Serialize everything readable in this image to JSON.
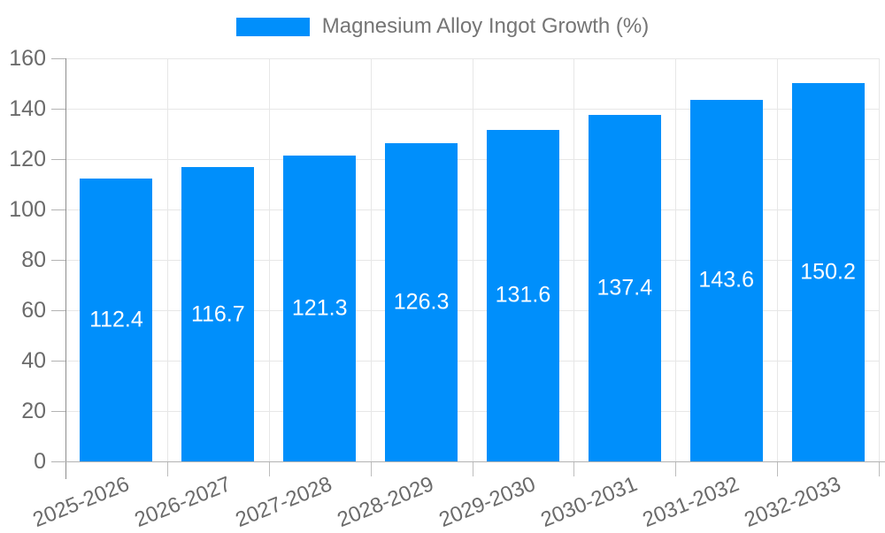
{
  "legend": {
    "label": "Magnesium Alloy Ingot Growth (%)"
  },
  "chart_data": {
    "type": "bar",
    "title": "Magnesium Alloy Ingot Growth (%)",
    "categories": [
      "2025-2026",
      "2026-2027",
      "2027-2028",
      "2028-2029",
      "2029-2030",
      "2030-2031",
      "2031-2032",
      "2032-2033"
    ],
    "series": [
      {
        "name": "Magnesium Alloy Ingot Growth (%)",
        "values": [
          112.4,
          116.7,
          121.3,
          126.3,
          131.6,
          137.4,
          143.6,
          150.2
        ]
      }
    ],
    "value_labels": [
      "112.4",
      "116.7",
      "121.3",
      "126.3",
      "131.6",
      "137.4",
      "143.6",
      "150.2"
    ],
    "xlabel": "",
    "ylabel": "",
    "ylim": [
      0,
      160
    ],
    "y_ticks": [
      0,
      20,
      40,
      60,
      80,
      100,
      120,
      140,
      160
    ],
    "grid": "on",
    "legend_position": "top",
    "colors": {
      "bar": "#008FFB",
      "value_label_text": "#ffffff",
      "axis_text": "#6b6b6b",
      "legend_text": "#757575",
      "gridline": "#e7e7e7",
      "axis_line": "#b3b3b3",
      "y_axis_line": "#8d8d8d"
    }
  }
}
